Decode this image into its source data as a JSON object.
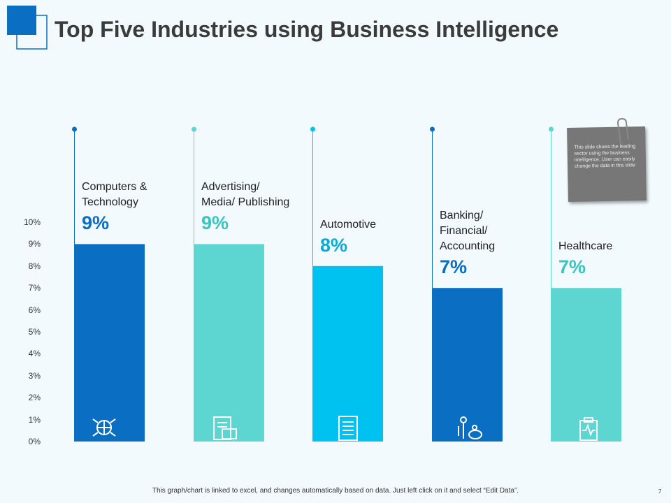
{
  "title": "Top Five Industries using Business Intelligence",
  "chart_data": {
    "type": "bar",
    "categories": [
      "Computers &\nTechnology",
      "Advertising/\nMedia/ Publishing",
      "Automotive",
      "Banking/\nFinancial/\nAccounting",
      "Healthcare"
    ],
    "values": [
      9,
      9,
      8,
      7,
      7
    ],
    "value_labels": [
      "9%",
      "9%",
      "8%",
      "7%",
      "7%"
    ],
    "colors": [
      "#0a6fc2",
      "#5dd6d2",
      "#00c2f0",
      "#0a6fc2",
      "#5dd6d2"
    ],
    "ylim": [
      0,
      10
    ],
    "yticks": [
      {
        "value": 0,
        "label": "0%"
      },
      {
        "value": 1,
        "label": "1%"
      },
      {
        "value": 2,
        "label": "2%"
      },
      {
        "value": 3,
        "label": "3%"
      },
      {
        "value": 4,
        "label": "4%"
      },
      {
        "value": 5,
        "label": "5%"
      },
      {
        "value": 6,
        "label": "6%"
      },
      {
        "value": 7,
        "label": "7%"
      },
      {
        "value": 8,
        "label": "8%"
      },
      {
        "value": 9,
        "label": "9%"
      },
      {
        "value": 10,
        "label": "10%"
      }
    ]
  },
  "note": "This slide shows the leading sector using the business intelligence. User can easily change the data in this slide",
  "footer": "This graph/chart is linked to excel, and changes automatically based on data. Just left click on it and select “Edit Data”.",
  "page_number": "7"
}
